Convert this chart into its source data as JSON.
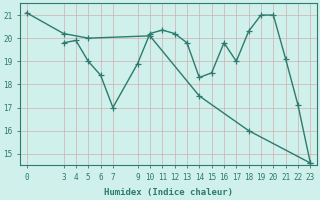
{
  "line1_x": [
    3,
    4,
    5,
    6,
    7,
    9,
    10,
    11,
    12,
    13,
    14,
    15,
    16,
    17,
    18,
    19,
    20,
    21,
    22,
    23
  ],
  "line1_y": [
    19.8,
    19.9,
    19.0,
    18.4,
    17.0,
    18.9,
    20.2,
    20.35,
    20.2,
    19.8,
    18.3,
    18.5,
    19.8,
    19.0,
    20.3,
    21.0,
    21.0,
    19.1,
    17.1,
    14.6
  ],
  "line2_x": [
    0,
    3,
    5,
    10,
    14,
    18,
    23
  ],
  "line2_y": [
    21.1,
    20.2,
    20.0,
    20.1,
    17.5,
    16.0,
    14.6
  ],
  "line_color": "#2d7a6e",
  "bg_color": "#cff0eb",
  "grid_color": "#e8e8e8",
  "xlabel": "Humidex (Indice chaleur)",
  "ylim": [
    14.5,
    21.5
  ],
  "xlim": [
    -0.5,
    23.5
  ],
  "yticks": [
    15,
    16,
    17,
    18,
    19,
    20,
    21
  ],
  "xticks": [
    0,
    3,
    4,
    5,
    6,
    7,
    9,
    10,
    11,
    12,
    13,
    14,
    15,
    16,
    17,
    18,
    19,
    20,
    21,
    22,
    23
  ],
  "marker": "+",
  "markersize": 4,
  "linewidth": 1.0,
  "xlabel_fontsize": 6.5,
  "tick_fontsize": 5.5
}
